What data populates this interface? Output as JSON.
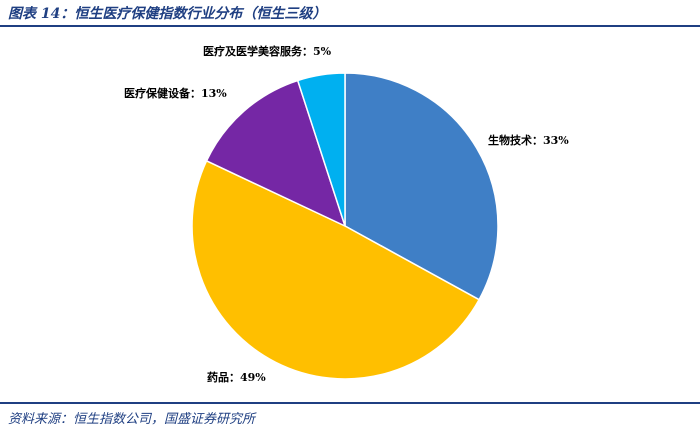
{
  "header": {
    "title": "图表 14：恒生医疗保健指数行业分布（恒生三级）"
  },
  "footer": {
    "source": "资料来源：恒生指数公司，国盛证券研究所"
  },
  "colors": {
    "accent": "#1f3f82",
    "slice_biotech": "#3f7fc6",
    "slice_pharma": "#ffbf00",
    "slice_equipment": "#7527a5",
    "slice_aesthetics": "#00b0f0",
    "slice_border": "#ffffff"
  },
  "chart_data": {
    "type": "pie",
    "title": "",
    "start_angle_deg": 0,
    "direction": "clockwise",
    "slices": [
      {
        "name": "生物技术",
        "value": 33,
        "label": "生物技术：33%"
      },
      {
        "name": "药品",
        "value": 49,
        "label": "药品：49%"
      },
      {
        "name": "医疗保健设备",
        "value": 13,
        "label": "医疗保健设备：13%"
      },
      {
        "name": "医疗及医学美容服务",
        "value": 5,
        "label": "医疗及医学美容服务：5%"
      }
    ]
  }
}
